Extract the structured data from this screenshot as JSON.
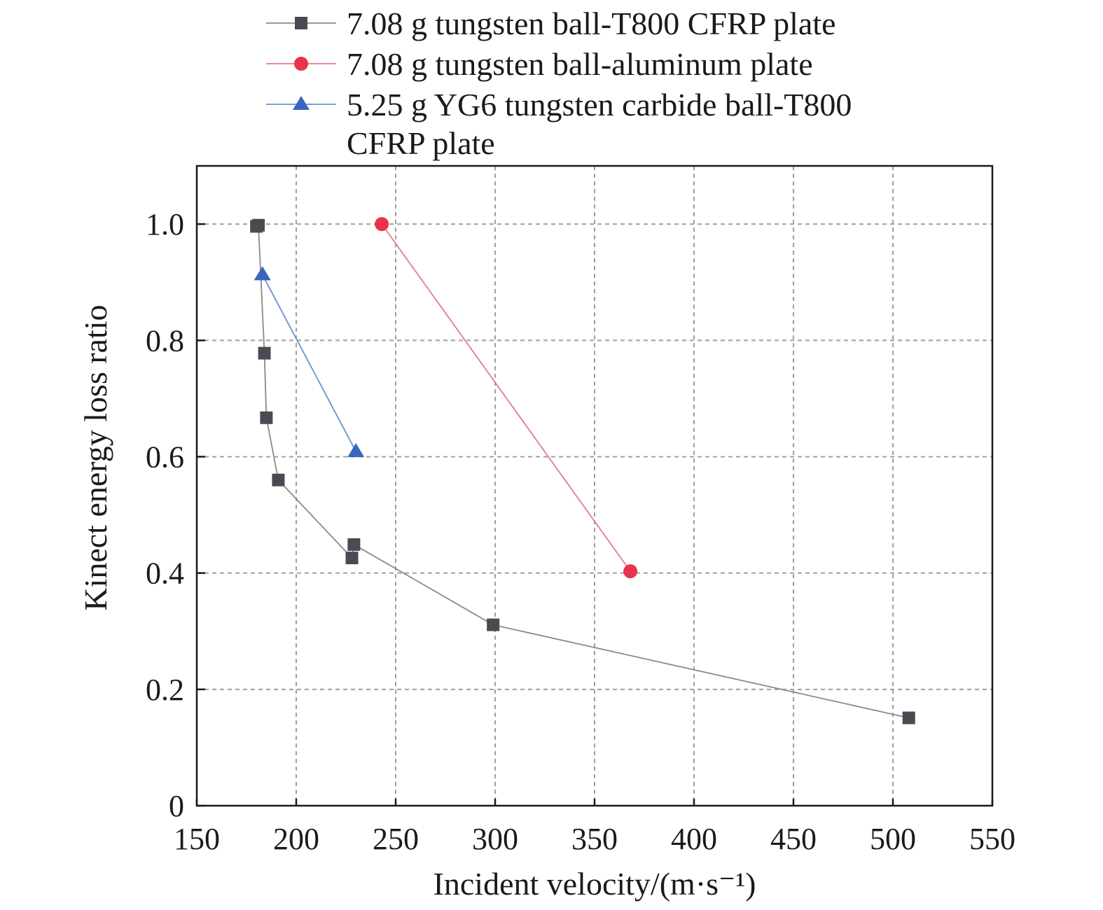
{
  "chart_data": {
    "type": "line",
    "title": "",
    "xlabel": "Incident velocity/(m·s⁻¹)",
    "ylabel": "Kinect energy loss ratio",
    "xlim": [
      150,
      550
    ],
    "ylim": [
      0,
      1.1
    ],
    "xticks": [
      150,
      200,
      250,
      300,
      350,
      400,
      450,
      500,
      550
    ],
    "xtick_labels": [
      "150",
      "200",
      "250",
      "300",
      "350",
      "400",
      "450",
      "500",
      "550"
    ],
    "yticks": [
      0,
      0.2,
      0.4,
      0.6,
      0.8,
      1.0
    ],
    "ytick_labels": [
      "0",
      "0.2",
      "0.4",
      "0.6",
      "0.8",
      "1.0"
    ],
    "grid": true,
    "legend_placement": "top, outside plot",
    "series": [
      {
        "name": "7.08 g tungsten ball-T800 CFRP plate",
        "marker": "square",
        "color": "#4a4b52",
        "line_color": "#8a8a8a",
        "x": [
          180,
          181,
          184,
          185,
          191,
          228,
          229,
          299,
          508
        ],
        "y": [
          0.996,
          0.998,
          0.778,
          0.667,
          0.56,
          0.426,
          0.449,
          0.311,
          0.151
        ]
      },
      {
        "name": "7.08 g tungsten ball-aluminum plate",
        "marker": "circle",
        "color": "#e8334a",
        "line_color": "#e8788a",
        "x": [
          243,
          368
        ],
        "y": [
          1.0,
          0.403
        ]
      },
      {
        "name": "5.25 g YG6 tungsten carbide ball-T800 CFRP plate",
        "name_lines": [
          "5.25 g YG6 tungsten carbide ball-T800",
          "CFRP plate"
        ],
        "marker": "triangle",
        "color": "#3a66c0",
        "line_color": "#6a90d0",
        "x": [
          183,
          230
        ],
        "y": [
          0.913,
          0.609
        ]
      }
    ]
  }
}
